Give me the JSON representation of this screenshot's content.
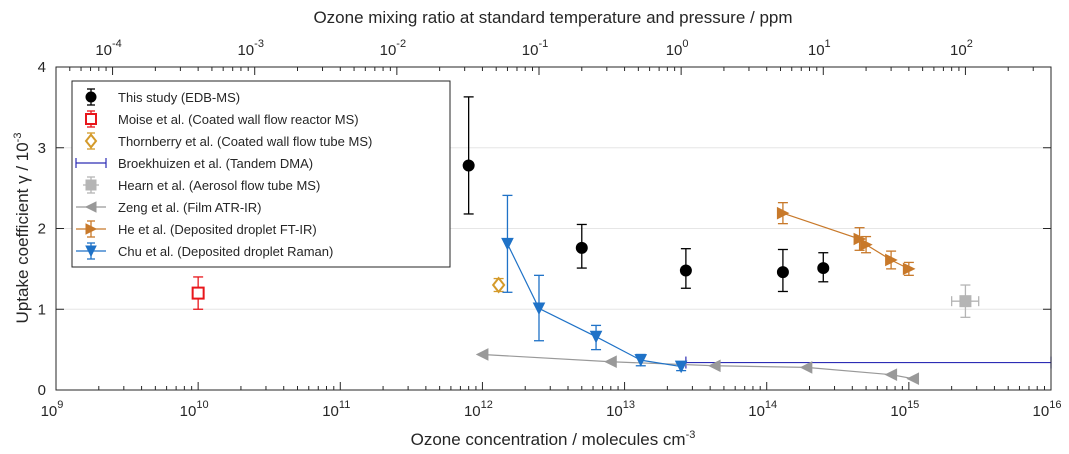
{
  "chart_data": {
    "type": "scatter",
    "xlabel_base": "Ozone concentration / molecules cm",
    "xlabel_sup": "-3",
    "x2label": "Ozone mixing ratio at standard temperature and pressure / ppm",
    "ylabel_base": "Uptake coefficient γ / 10",
    "ylabel_sup": "-3",
    "x_scale": "log",
    "x2_scale": "log",
    "xlim": [
      1000000000.0,
      1e+16
    ],
    "x2lim": [
      4e-05,
      400
    ],
    "ylim": [
      0,
      4
    ],
    "grid_y": true,
    "legend_position": "top-left",
    "x_ticks": [
      {
        "value": 1000000000.0,
        "base": "10",
        "exp": "9"
      },
      {
        "value": 10000000000.0,
        "base": "10",
        "exp": "10"
      },
      {
        "value": 100000000000.0,
        "base": "10",
        "exp": "11"
      },
      {
        "value": 1000000000000.0,
        "base": "10",
        "exp": "12"
      },
      {
        "value": 10000000000000.0,
        "base": "10",
        "exp": "13"
      },
      {
        "value": 100000000000000.0,
        "base": "10",
        "exp": "14"
      },
      {
        "value": 1000000000000000.0,
        "base": "10",
        "exp": "15"
      },
      {
        "value": 1e+16,
        "base": "10",
        "exp": "16"
      }
    ],
    "x2_ticks": [
      {
        "value": 0.0001,
        "base": "10",
        "exp": "-4"
      },
      {
        "value": 0.001,
        "base": "10",
        "exp": "-3"
      },
      {
        "value": 0.01,
        "base": "10",
        "exp": "-2"
      },
      {
        "value": 0.1,
        "base": "10",
        "exp": "-1"
      },
      {
        "value": 1,
        "base": "10",
        "exp": "0"
      },
      {
        "value": 10,
        "base": "10",
        "exp": "1"
      },
      {
        "value": 100,
        "base": "10",
        "exp": "2"
      }
    ],
    "y_ticks": [
      {
        "value": 0,
        "label": "0"
      },
      {
        "value": 1,
        "label": "1"
      },
      {
        "value": 2,
        "label": "2"
      },
      {
        "value": 3,
        "label": "3"
      },
      {
        "value": 4,
        "label": "4"
      }
    ],
    "series": [
      {
        "name": "This study (EDB-MS)",
        "color": "#000000",
        "marker": "circle",
        "filled": true,
        "line": false,
        "points": [
          {
            "x": 800000000000.0,
            "y": 2.78,
            "ylo": 2.18,
            "yhi": 3.63
          },
          {
            "x": 5000000000000.0,
            "y": 1.76,
            "ylo": 1.51,
            "yhi": 2.05
          },
          {
            "x": 27000000000000.0,
            "y": 1.48,
            "ylo": 1.26,
            "yhi": 1.75
          },
          {
            "x": 130000000000000.0,
            "y": 1.46,
            "ylo": 1.22,
            "yhi": 1.74
          },
          {
            "x": 250000000000000.0,
            "y": 1.51,
            "ylo": 1.34,
            "yhi": 1.7
          }
        ]
      },
      {
        "name": "Moise et al. (Coated wall flow reactor MS)",
        "color": "#e8161b",
        "marker": "square",
        "filled": false,
        "line": false,
        "points": [
          {
            "x": 10000000000.0,
            "y": 1.2,
            "ylo": 1.0,
            "yhi": 1.4
          }
        ]
      },
      {
        "name": "Thornberry et al. (Coated wall flow tube MS)",
        "color": "#d49a2a",
        "marker": "diamond",
        "filled": false,
        "line": false,
        "points": [
          {
            "x": 1300000000000.0,
            "y": 1.3,
            "ylo": 1.22,
            "yhi": 1.38
          }
        ]
      },
      {
        "name": "Broekhuizen et al. (Tandem DMA)",
        "color": "#2d2db5",
        "marker": "none",
        "filled": false,
        "line": true,
        "hbar": true,
        "points": [
          {
            "x": 27000000000000.0,
            "y": 0.34
          },
          {
            "x": 1e+16,
            "y": 0.34
          }
        ]
      },
      {
        "name": "Hearn et al. (Aerosol flow tube MS)",
        "color": "#b5b5b5",
        "marker": "square",
        "filled": true,
        "line": false,
        "points": [
          {
            "x": 2500000000000000.0,
            "y": 1.1,
            "ylo": 0.9,
            "yhi": 1.3,
            "xlo": 2000000000000000.0,
            "xhi": 3100000000000000.0
          }
        ]
      },
      {
        "name": "Zeng et al. (Film ATR-IR)",
        "color": "#999999",
        "marker": "triangle-left",
        "filled": true,
        "line": true,
        "points": [
          {
            "x": 1000000000000.0,
            "y": 0.44
          },
          {
            "x": 8000000000000.0,
            "y": 0.35
          },
          {
            "x": 43000000000000.0,
            "y": 0.3
          },
          {
            "x": 190000000000000.0,
            "y": 0.28
          },
          {
            "x": 750000000000000.0,
            "y": 0.19
          },
          {
            "x": 1070000000000000.0,
            "y": 0.14
          }
        ]
      },
      {
        "name": "He et al. (Deposited droplet FT-IR)",
        "color": "#c8792a",
        "marker": "triangle-right",
        "filled": true,
        "line": true,
        "points": [
          {
            "x": 130000000000000.0,
            "y": 2.19,
            "ylo": 2.06,
            "yhi": 2.32
          },
          {
            "x": 450000000000000.0,
            "y": 1.87,
            "ylo": 1.73,
            "yhi": 2.01
          },
          {
            "x": 500000000000000.0,
            "y": 1.8,
            "ylo": 1.7,
            "yhi": 1.9
          },
          {
            "x": 750000000000000.0,
            "y": 1.61,
            "ylo": 1.5,
            "yhi": 1.72
          },
          {
            "x": 1000000000000000.0,
            "y": 1.5,
            "ylo": 1.42,
            "yhi": 1.58
          }
        ]
      },
      {
        "name": "Chu et al. (Deposited droplet Raman)",
        "color": "#1f72c7",
        "marker": "triangle-down",
        "filled": true,
        "line": true,
        "points": [
          {
            "x": 1500000000000.0,
            "y": 1.81,
            "ylo": 1.21,
            "yhi": 2.41
          },
          {
            "x": 2500000000000.0,
            "y": 1.01,
            "ylo": 0.61,
            "yhi": 1.42
          },
          {
            "x": 6300000000000.0,
            "y": 0.66,
            "ylo": 0.5,
            "yhi": 0.8
          },
          {
            "x": 13000000000000.0,
            "y": 0.37,
            "ylo": 0.3,
            "yhi": 0.44
          },
          {
            "x": 25000000000000.0,
            "y": 0.29,
            "ylo": 0.24,
            "yhi": 0.34
          }
        ]
      }
    ]
  }
}
